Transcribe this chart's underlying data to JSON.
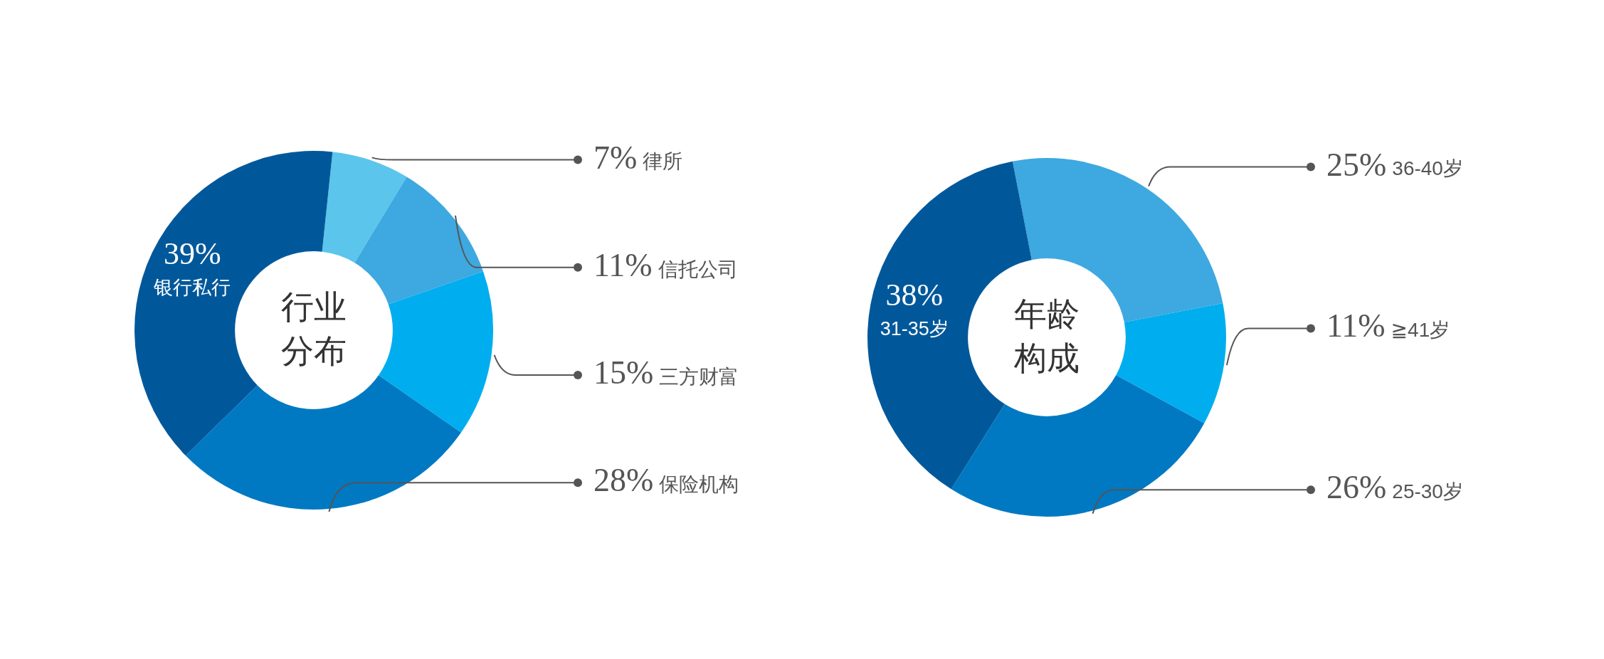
{
  "chart_data": [
    {
      "type": "donut",
      "title": "行业分布",
      "categories": [
        "律所",
        "信托公司",
        "三方财富",
        "保险机构",
        "银行私行"
      ],
      "values": [
        7,
        11,
        15,
        28,
        39
      ],
      "value_labels": [
        "7%",
        "11%",
        "15%",
        "28%",
        "39%"
      ],
      "colors": [
        "#5bc5ec",
        "#3ea8e0",
        "#00aeef",
        "#0079c2",
        "#00589b"
      ]
    },
    {
      "type": "donut",
      "title": "年龄构成",
      "categories": [
        "36-40岁",
        "≧41岁",
        "25-30岁",
        "31-35岁"
      ],
      "values": [
        25,
        11,
        26,
        38
      ],
      "value_labels": [
        "25%",
        "11%",
        "26%",
        "38%"
      ],
      "colors": [
        "#3ea8e0",
        "#00aeef",
        "#0079c2",
        "#00589b"
      ]
    }
  ]
}
